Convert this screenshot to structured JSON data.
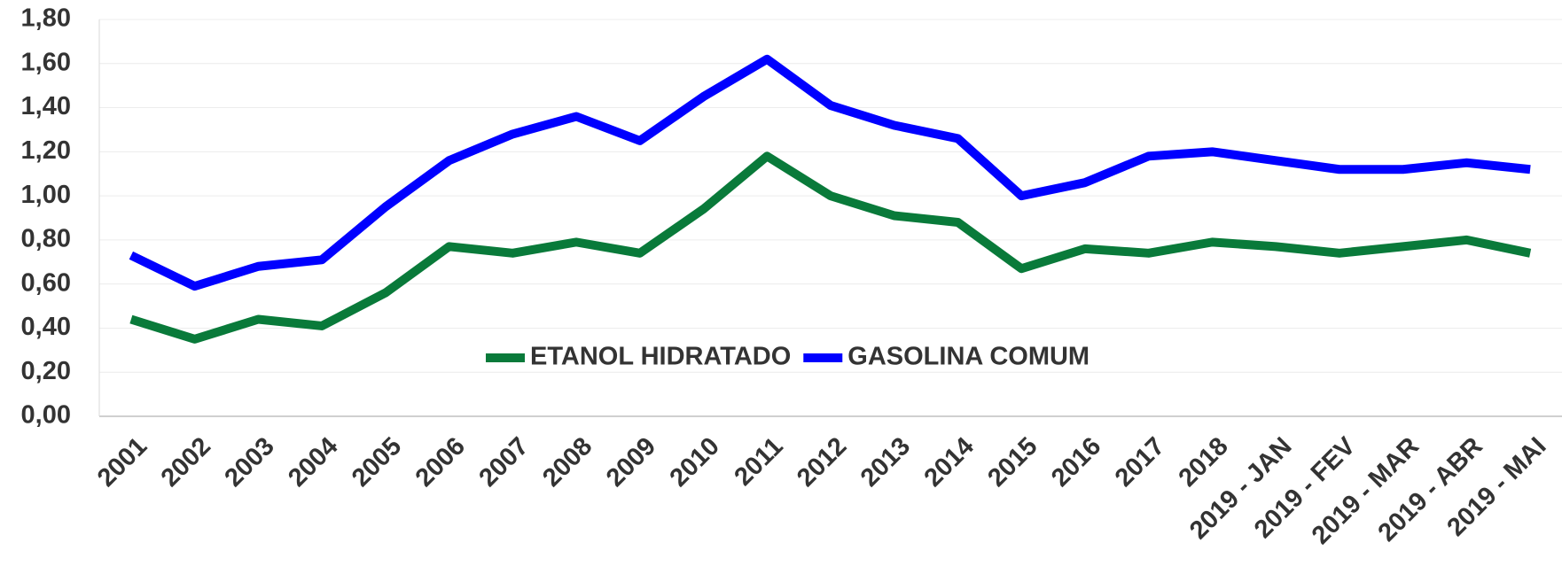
{
  "chart_data": {
    "type": "line",
    "categories": [
      "2001",
      "2002",
      "2003",
      "2004",
      "2005",
      "2006",
      "2007",
      "2008",
      "2009",
      "2010",
      "2011",
      "2012",
      "2013",
      "2014",
      "2015",
      "2016",
      "2017",
      "2018",
      "2019 - JAN",
      "2019 - FEV",
      "2019 - MAR",
      "2019 - ABR",
      "2019 - MAI"
    ],
    "series": [
      {
        "name": "ETANOL HIDRATADO",
        "color": "#097a3a",
        "values": [
          0.44,
          0.35,
          0.44,
          0.41,
          0.56,
          0.77,
          0.74,
          0.79,
          0.74,
          0.94,
          1.18,
          1.0,
          0.91,
          0.88,
          0.67,
          0.76,
          0.74,
          0.79,
          0.77,
          0.74,
          0.77,
          0.8,
          0.74
        ]
      },
      {
        "name": "GASOLINA COMUM",
        "color": "#0000ff",
        "values": [
          0.73,
          0.59,
          0.68,
          0.71,
          0.95,
          1.16,
          1.28,
          1.36,
          1.25,
          1.45,
          1.62,
          1.41,
          1.32,
          1.26,
          1.0,
          1.06,
          1.18,
          1.2,
          1.16,
          1.12,
          1.12,
          1.15,
          1.12
        ]
      }
    ],
    "ylim": [
      0,
      1.8
    ],
    "yticks": [
      {
        "value": 0,
        "label": "0,00"
      },
      {
        "value": 0.2,
        "label": "0,20"
      },
      {
        "value": 0.4,
        "label": "0,40"
      },
      {
        "value": 0.6,
        "label": "0,60"
      },
      {
        "value": 0.8,
        "label": "0,80"
      },
      {
        "value": 1,
        "label": "1,00"
      },
      {
        "value": 1.2,
        "label": "1,20"
      },
      {
        "value": 1.4,
        "label": "1,40"
      },
      {
        "value": 1.6,
        "label": "1,60"
      },
      {
        "value": 1.8,
        "label": "1,80"
      }
    ],
    "grid": true,
    "legend": "center"
  }
}
